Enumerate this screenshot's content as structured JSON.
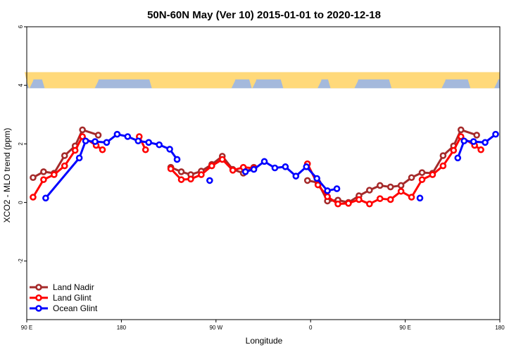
{
  "chart_data": {
    "type": "line",
    "title": "50N-60N May (Ver 10)   2015-01-01 to 2020-12-18",
    "xlabel": "Longitude",
    "ylabel": "XCO2 - MLO trend (ppm)",
    "xlim": [
      90,
      540
    ],
    "ylim": [
      -4,
      6
    ],
    "x_ticks": [
      {
        "value": 90,
        "label": "90 E"
      },
      {
        "value": 180,
        "label": "180"
      },
      {
        "value": 270,
        "label": "90 W"
      },
      {
        "value": 360,
        "label": "0"
      },
      {
        "value": 450,
        "label": "90 E"
      },
      {
        "value": 540,
        "label": "180"
      }
    ],
    "y_ticks": [
      {
        "value": -2,
        "label": "-2"
      },
      {
        "value": 0,
        "label": "0"
      },
      {
        "value": 2,
        "label": "2"
      },
      {
        "value": 4,
        "label": "4"
      },
      {
        "value": 6,
        "label": "6"
      }
    ],
    "legend_position": "bottom-left",
    "map_strip": {
      "y_range": [
        3.9,
        4.45
      ],
      "ocean_color": "#a4b9dc",
      "land_color": "#ffd97a"
    },
    "series": [
      {
        "name": "Land Nadir",
        "color": "#a52a2a",
        "segments": [
          [
            [
              96,
              0.85
            ],
            [
              106,
              1.05
            ],
            [
              116,
              1.0
            ],
            [
              126,
              1.6
            ],
            [
              136,
              1.93
            ],
            [
              143,
              2.48
            ],
            [
              158,
              2.3
            ]
          ],
          [
            [
              227,
              1.2
            ],
            [
              237,
              1.05
            ],
            [
              246,
              0.95
            ],
            [
              256,
              1.07
            ],
            [
              266,
              1.3
            ],
            [
              276,
              1.58
            ],
            [
              286,
              1.13
            ],
            [
              296,
              1.0
            ],
            [
              306,
              1.2
            ]
          ],
          [
            [
              357,
              0.75
            ],
            [
              367,
              0.68
            ],
            [
              376,
              0.05
            ],
            [
              386,
              0.08
            ],
            [
              396,
              0.0
            ],
            [
              406,
              0.23
            ],
            [
              416,
              0.42
            ],
            [
              426,
              0.58
            ],
            [
              436,
              0.53
            ],
            [
              446,
              0.58
            ],
            [
              456,
              0.85
            ],
            [
              466,
              1.02
            ],
            [
              476,
              1.0
            ],
            [
              486,
              1.6
            ],
            [
              496,
              1.93
            ],
            [
              503,
              2.48
            ],
            [
              518,
              2.3
            ]
          ]
        ]
      },
      {
        "name": "Land Glint",
        "color": "#ff0000",
        "segments": [
          [
            [
              96,
              0.18
            ],
            [
              106,
              0.78
            ],
            [
              116,
              0.95
            ],
            [
              126,
              1.25
            ],
            [
              136,
              1.78
            ],
            [
              143,
              2.25
            ],
            [
              156,
              1.95
            ],
            [
              162,
              1.8
            ]
          ],
          [
            [
              197,
              2.25
            ],
            [
              203,
              1.8
            ]
          ],
          [
            [
              227,
              1.15
            ],
            [
              237,
              0.78
            ],
            [
              246,
              0.8
            ],
            [
              256,
              0.95
            ],
            [
              266,
              1.25
            ],
            [
              276,
              1.47
            ],
            [
              286,
              1.1
            ],
            [
              296,
              1.2
            ],
            [
              306,
              1.17
            ]
          ],
          [
            [
              357,
              1.32
            ],
            [
              367,
              0.6
            ],
            [
              376,
              0.2
            ],
            [
              386,
              -0.05
            ],
            [
              396,
              -0.03
            ],
            [
              406,
              0.1
            ],
            [
              416,
              -0.05
            ],
            [
              426,
              0.13
            ],
            [
              436,
              0.1
            ],
            [
              446,
              0.38
            ],
            [
              456,
              0.18
            ],
            [
              466,
              0.78
            ],
            [
              476,
              0.95
            ],
            [
              486,
              1.25
            ],
            [
              496,
              1.78
            ],
            [
              503,
              2.25
            ],
            [
              516,
              1.95
            ],
            [
              522,
              1.8
            ]
          ]
        ]
      },
      {
        "name": "Ocean Glint",
        "color": "#0000ff",
        "segments": [
          [
            [
              108,
              0.15
            ],
            [
              140,
              1.52
            ],
            [
              146,
              2.1
            ],
            [
              155,
              2.08
            ],
            [
              166,
              2.05
            ],
            [
              176,
              2.33
            ],
            [
              186,
              2.25
            ],
            [
              196,
              2.1
            ],
            [
              206,
              2.05
            ],
            [
              216,
              1.97
            ],
            [
              226,
              1.82
            ],
            [
              233,
              1.47
            ]
          ],
          [
            [
              264,
              0.75
            ]
          ],
          [
            [
              298,
              1.05
            ],
            [
              306,
              1.13
            ],
            [
              316,
              1.4
            ],
            [
              326,
              1.18
            ],
            [
              336,
              1.22
            ],
            [
              346,
              0.9
            ],
            [
              356,
              1.22
            ],
            [
              366,
              0.82
            ],
            [
              376,
              0.4
            ],
            [
              385,
              0.47
            ]
          ],
          [
            [
              464,
              0.15
            ]
          ],
          [
            [
              500,
              1.52
            ],
            [
              506,
              2.1
            ],
            [
              515,
              2.08
            ],
            [
              526,
              2.05
            ],
            [
              536,
              2.33
            ]
          ]
        ]
      }
    ]
  }
}
